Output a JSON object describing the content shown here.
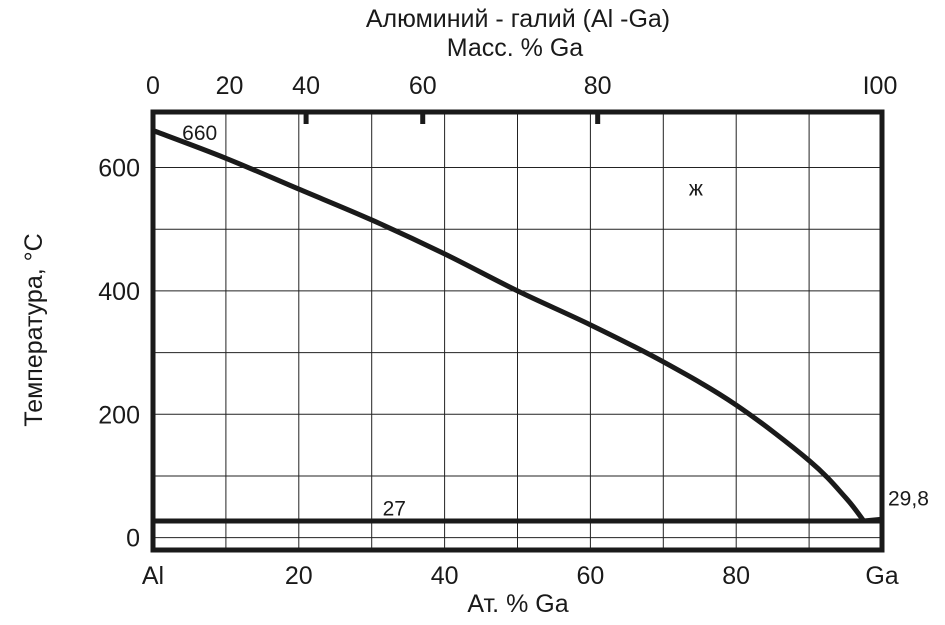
{
  "chart_data": {
    "type": "line",
    "title": "Алюминий - галий (Al -Ga)",
    "subtitle": "Масс. % Ga",
    "xlabel": "Ат. % Ga",
    "ylabel": "Температура, °C",
    "xlim": [
      0,
      100
    ],
    "ylim": [
      -20,
      690
    ],
    "grid": true,
    "x_ticks": [
      {
        "value": 0,
        "label": "Al"
      },
      {
        "value": 20,
        "label": "20"
      },
      {
        "value": 40,
        "label": "40"
      },
      {
        "value": 60,
        "label": "60"
      },
      {
        "value": 80,
        "label": "80"
      },
      {
        "value": 100,
        "label": "Ga"
      }
    ],
    "y_ticks": [
      {
        "value": 0,
        "label": "0"
      },
      {
        "value": 200,
        "label": "200"
      },
      {
        "value": 400,
        "label": "400"
      },
      {
        "value": 600,
        "label": "600"
      }
    ],
    "x_grid": [
      0,
      10,
      20,
      30,
      40,
      50,
      60,
      70,
      80,
      90,
      100
    ],
    "y_grid": [
      0,
      100,
      200,
      300,
      400,
      500,
      600
    ],
    "top_axis": {
      "label": "Масс. % Ga",
      "ticks": [
        {
          "label": "0",
          "at_atomic_pct": 0
        },
        {
          "label": "20",
          "at_atomic_pct": 10.5
        },
        {
          "label": "40",
          "at_atomic_pct": 21
        },
        {
          "label": "60",
          "at_atomic_pct": 37
        },
        {
          "label": "80",
          "at_atomic_pct": 61
        },
        {
          "label": "I00",
          "at_atomic_pct": 100
        }
      ],
      "major_marks_at_atomic_pct": [
        21,
        37,
        61
      ]
    },
    "series": [
      {
        "kind": "liquidus",
        "x": [
          0,
          10,
          20,
          30,
          40,
          50,
          60,
          70,
          80,
          90,
          95,
          97.5
        ],
        "y": [
          660,
          615,
          565,
          515,
          460,
          400,
          345,
          285,
          215,
          125,
          65,
          27
        ]
      },
      {
        "kind": "liquidus-ga",
        "x": [
          97.5,
          100
        ],
        "y": [
          27,
          29.8
        ]
      },
      {
        "kind": "eutectic",
        "x": [
          0,
          100
        ],
        "y": [
          27,
          27
        ]
      }
    ],
    "annotations": [
      {
        "text": "660",
        "x": 4,
        "y": 645
      },
      {
        "text": "27",
        "x": 31.5,
        "y": 36
      },
      {
        "text": "ж",
        "x": 73.5,
        "y": 555
      },
      {
        "text": "29,8",
        "x": 101,
        "y": 52
      }
    ]
  }
}
